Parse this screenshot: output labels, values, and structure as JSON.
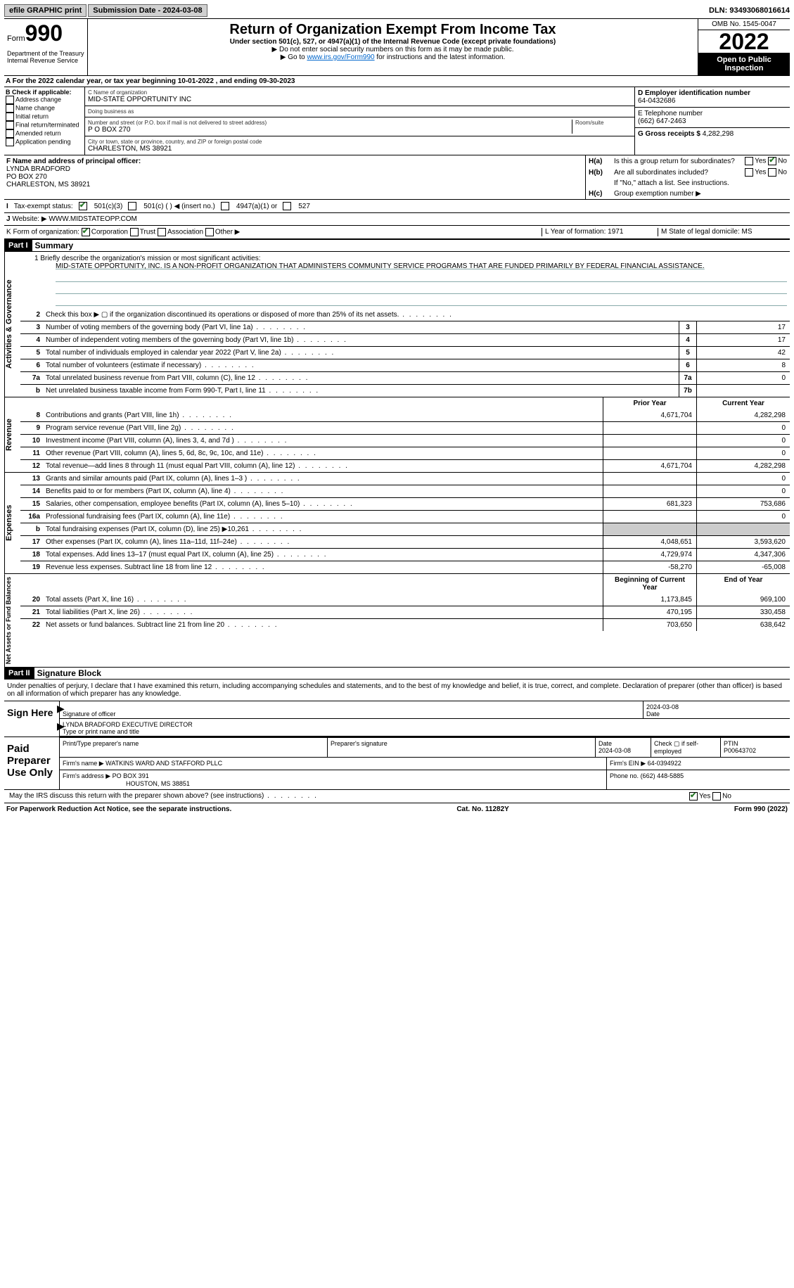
{
  "topbar": {
    "efile": "efile GRAPHIC print",
    "sub_label": "Submission Date - 2024-03-08",
    "dln": "DLN: 93493068016614"
  },
  "head": {
    "form": "Form",
    "n": "990",
    "title": "Return of Organization Exempt From Income Tax",
    "sub": "Under section 501(c), 527, or 4947(a)(1) of the Internal Revenue Code (except private foundations)",
    "l1": "▶ Do not enter social security numbers on this form as it may be made public.",
    "l2_pre": "▶ Go to ",
    "l2_link": "www.irs.gov/Form990",
    "l2_post": " for instructions and the latest information.",
    "dept": "Department of the Treasury",
    "irs": "Internal Revenue Service",
    "omb": "OMB No. 1545-0047",
    "year": "2022",
    "open": "Open to Public Inspection"
  },
  "A": {
    "text": "A For the 2022 calendar year, or tax year beginning 10-01-2022   , and ending 09-30-2023"
  },
  "B": {
    "label": "B Check if applicable:",
    "opts": [
      "Address change",
      "Name change",
      "Initial return",
      "Final return/terminated",
      "Amended return",
      "Application pending"
    ]
  },
  "C": {
    "name_hint": "C Name of organization",
    "name": "MID-STATE OPPORTUNITY INC",
    "dba_hint": "Doing business as",
    "dba": "",
    "addr_hint": "Number and street (or P.O. box if mail is not delivered to street address)",
    "room_hint": "Room/suite",
    "addr": "P O BOX 270",
    "city_hint": "City or town, state or province, country, and ZIP or foreign postal code",
    "city": "CHARLESTON, MS  38921"
  },
  "D": {
    "label": "D Employer identification number",
    "val": "64-0432686"
  },
  "E": {
    "label": "E Telephone number",
    "val": "(662) 647-2463"
  },
  "G": {
    "label": "G Gross receipts $",
    "val": "4,282,298"
  },
  "F": {
    "label": "F  Name and address of principal officer:",
    "l1": "LYNDA BRADFORD",
    "l2": "PO BOX 270",
    "l3": "CHARLESTON, MS  38921"
  },
  "H": {
    "a": "Is this a group return for subordinates?",
    "b": "Are all subordinates included?",
    "b2": "If \"No,\" attach a list. See instructions.",
    "c": "Group exemption number ▶"
  },
  "I": {
    "label": "Tax-exempt status:",
    "o1": "501(c)(3)",
    "o2": "501(c) (  ) ◀ (insert no.)",
    "o3": "4947(a)(1) or",
    "o4": "527"
  },
  "J": {
    "label": "Website: ▶",
    "val": "WWW.MIDSTATEOPP.COM"
  },
  "K": {
    "label": "K Form of organization:",
    "o1": "Corporation",
    "o2": "Trust",
    "o3": "Association",
    "o4": "Other ▶"
  },
  "L": {
    "label": "L Year of formation:",
    "val": "1971"
  },
  "M": {
    "label": "M State of legal domicile:",
    "val": "MS"
  },
  "part1": {
    "tag": "Part I",
    "title": "Summary"
  },
  "mission": {
    "q": "1  Briefly describe the organization's mission or most significant activities:",
    "text": "MID-STATE OPPORTUNITY, INC. IS A NON-PROFIT ORGANIZATION THAT ADMINISTERS COMMUNITY SERVICE PROGRAMS THAT ARE FUNDED PRIMARILY BY FEDERAL FINANCIAL ASSISTANCE."
  },
  "gov": {
    "label": "Activities & Governance",
    "rows": [
      {
        "n": "2",
        "d": "Check this box ▶ ▢ if the organization discontinued its operations or disposed of more than 25% of its net assets."
      },
      {
        "n": "3",
        "d": "Number of voting members of the governing body (Part VI, line 1a)",
        "box": "3",
        "v": "17"
      },
      {
        "n": "4",
        "d": "Number of independent voting members of the governing body (Part VI, line 1b)",
        "box": "4",
        "v": "17"
      },
      {
        "n": "5",
        "d": "Total number of individuals employed in calendar year 2022 (Part V, line 2a)",
        "box": "5",
        "v": "42"
      },
      {
        "n": "6",
        "d": "Total number of volunteers (estimate if necessary)",
        "box": "6",
        "v": "8"
      },
      {
        "n": "7a",
        "d": "Total unrelated business revenue from Part VIII, column (C), line 12",
        "box": "7a",
        "v": "0"
      },
      {
        "n": "b",
        "d": "Net unrelated business taxable income from Form 990-T, Part I, line 11",
        "box": "7b",
        "v": ""
      }
    ]
  },
  "rev": {
    "label": "Revenue",
    "head_prior": "Prior Year",
    "head_curr": "Current Year",
    "rows": [
      {
        "n": "8",
        "d": "Contributions and grants (Part VIII, line 1h)",
        "p": "4,671,704",
        "c": "4,282,298"
      },
      {
        "n": "9",
        "d": "Program service revenue (Part VIII, line 2g)",
        "p": "",
        "c": "0"
      },
      {
        "n": "10",
        "d": "Investment income (Part VIII, column (A), lines 3, 4, and 7d )",
        "p": "",
        "c": "0"
      },
      {
        "n": "11",
        "d": "Other revenue (Part VIII, column (A), lines 5, 6d, 8c, 9c, 10c, and 11e)",
        "p": "",
        "c": "0"
      },
      {
        "n": "12",
        "d": "Total revenue—add lines 8 through 11 (must equal Part VIII, column (A), line 12)",
        "p": "4,671,704",
        "c": "4,282,298"
      }
    ]
  },
  "exp": {
    "label": "Expenses",
    "rows": [
      {
        "n": "13",
        "d": "Grants and similar amounts paid (Part IX, column (A), lines 1–3 )",
        "p": "",
        "c": "0"
      },
      {
        "n": "14",
        "d": "Benefits paid to or for members (Part IX, column (A), line 4)",
        "p": "",
        "c": "0"
      },
      {
        "n": "15",
        "d": "Salaries, other compensation, employee benefits (Part IX, column (A), lines 5–10)",
        "p": "681,323",
        "c": "753,686"
      },
      {
        "n": "16a",
        "d": "Professional fundraising fees (Part IX, column (A), line 11e)",
        "p": "",
        "c": "0"
      },
      {
        "n": "b",
        "d": "Total fundraising expenses (Part IX, column (D), line 25) ▶10,261",
        "gray": true
      },
      {
        "n": "17",
        "d": "Other expenses (Part IX, column (A), lines 11a–11d, 11f–24e)",
        "p": "4,048,651",
        "c": "3,593,620"
      },
      {
        "n": "18",
        "d": "Total expenses. Add lines 13–17 (must equal Part IX, column (A), line 25)",
        "p": "4,729,974",
        "c": "4,347,306"
      },
      {
        "n": "19",
        "d": "Revenue less expenses. Subtract line 18 from line 12",
        "p": "-58,270",
        "c": "-65,008"
      }
    ]
  },
  "net": {
    "label": "Net Assets or Fund Balances",
    "head_prior": "Beginning of Current Year",
    "head_curr": "End of Year",
    "rows": [
      {
        "n": "20",
        "d": "Total assets (Part X, line 16)",
        "p": "1,173,845",
        "c": "969,100"
      },
      {
        "n": "21",
        "d": "Total liabilities (Part X, line 26)",
        "p": "470,195",
        "c": "330,458"
      },
      {
        "n": "22",
        "d": "Net assets or fund balances. Subtract line 21 from line 20",
        "p": "703,650",
        "c": "638,642"
      }
    ]
  },
  "part2": {
    "tag": "Part II",
    "title": "Signature Block"
  },
  "sig": {
    "decl": "Under penalties of perjury, I declare that I have examined this return, including accompanying schedules and statements, and to the best of my knowledge and belief, it is true, correct, and complete. Declaration of preparer (other than officer) is based on all information of which preparer has any knowledge.",
    "here": "Sign Here",
    "sig_label": "Signature of officer",
    "date": "2024-03-08",
    "date_label": "Date",
    "name": "LYNDA BRADFORD  EXECUTIVE DIRECTOR",
    "name_label": "Type or print name and title"
  },
  "prep": {
    "here": "Paid Preparer Use Only",
    "h_name": "Print/Type preparer's name",
    "h_sig": "Preparer's signature",
    "h_date": "Date",
    "date": "2024-03-08",
    "h_check": "Check ▢ if self-employed",
    "h_ptin": "PTIN",
    "ptin": "P00643702",
    "firm_label": "Firm's name    ▶",
    "firm": "WATKINS WARD AND STAFFORD PLLC",
    "ein_label": "Firm's EIN ▶",
    "ein": "64-0394922",
    "addr_label": "Firm's address ▶",
    "addr1": "PO BOX 391",
    "addr2": "HOUSTON, MS  38851",
    "phone_label": "Phone no.",
    "phone": "(662) 448-5885"
  },
  "discuss": {
    "q": "May the IRS discuss this return with the preparer shown above? (see instructions)"
  },
  "footer": {
    "l": "For Paperwork Reduction Act Notice, see the separate instructions.",
    "c": "Cat. No. 11282Y",
    "r": "Form 990 (2022)"
  }
}
